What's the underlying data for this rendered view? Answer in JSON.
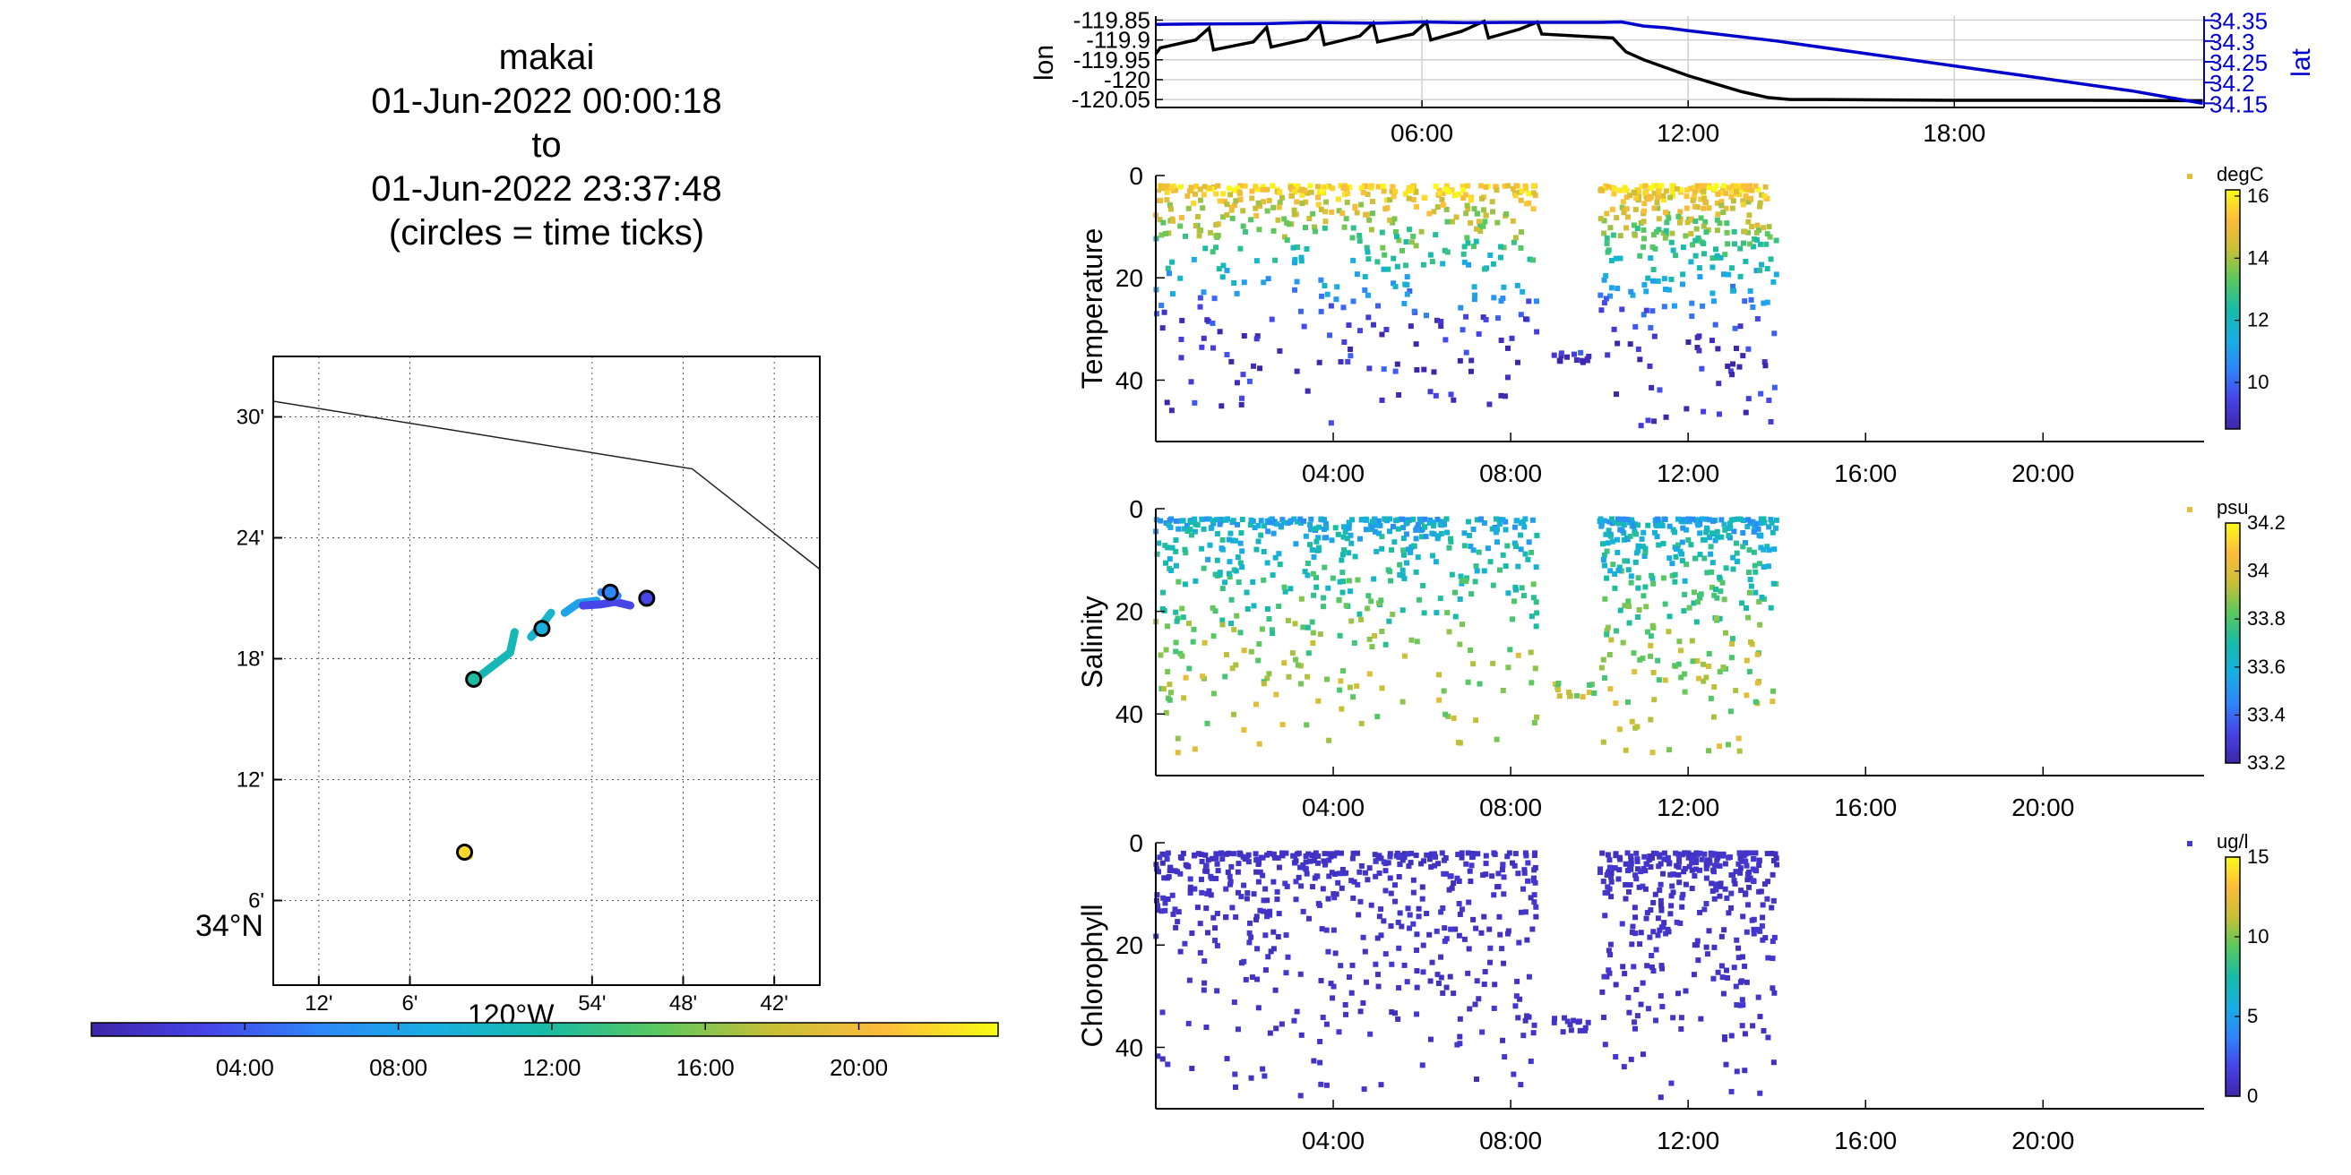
{
  "title": {
    "line1": "makai",
    "line2": "01-Jun-2022 00:00:18",
    "line3": "to",
    "line4": "01-Jun-2022 23:37:48",
    "line5": "(circles = time ticks)"
  },
  "colors": {
    "lon_line": "#000000",
    "lat_line": "#0000cc",
    "grid": "#d0d0d0",
    "colormap": [
      "#3e26a8",
      "#4743e8",
      "#2f86f9",
      "#18aee3",
      "#17bba7",
      "#5ac85f",
      "#c8bf36",
      "#fdbc3c",
      "#f9fb15"
    ]
  },
  "chart_data": [
    {
      "type": "scatter",
      "name": "track-map",
      "x_ticks": [
        "12'",
        "6'",
        "54'",
        "48'",
        "42'"
      ],
      "y_ticks": [
        "30'",
        "24'",
        "18'",
        "12'",
        "6'"
      ],
      "x_axis_label": "120°W",
      "y_axis_label": "34°N",
      "xlim": [
        -120.25,
        -119.65
      ],
      "ylim": [
        34.03,
        34.55
      ],
      "coastline": [
        [
          -120.25,
          34.513
        ],
        [
          -119.79,
          34.457
        ],
        [
          -119.65,
          34.374
        ]
      ],
      "track_segments": [
        {
          "time": 21,
          "points": [
            [
              -120.042,
              34.138
            ],
            [
              -120.035,
              34.137
            ]
          ]
        },
        {
          "time": 11,
          "points": [
            [
              -120.028,
              34.283
            ],
            [
              -119.99,
              34.305
            ],
            [
              -119.985,
              34.322
            ]
          ]
        },
        {
          "time": 10,
          "points": [
            [
              -119.967,
              34.318
            ],
            [
              -119.955,
              34.328
            ],
            [
              -119.945,
              34.338
            ]
          ]
        },
        {
          "time": 8,
          "points": [
            [
              -119.93,
              34.338
            ],
            [
              -119.915,
              34.346
            ],
            [
              -119.895,
              34.348
            ]
          ]
        },
        {
          "time": 3,
          "points": [
            [
              -119.91,
              34.344
            ],
            [
              -119.89,
              34.345
            ],
            [
              -119.875,
              34.347
            ],
            [
              -119.858,
              34.344
            ]
          ]
        },
        {
          "time": 6,
          "points": [
            [
              -119.872,
              34.352
            ],
            [
              -119.89,
              34.355
            ]
          ]
        }
      ],
      "time_ticks": [
        {
          "lon": -120.03,
          "lat": 34.283,
          "time": 12
        },
        {
          "lon": -119.955,
          "lat": 34.325,
          "time": 9
        },
        {
          "lon": -119.88,
          "lat": 34.355,
          "time": 6
        },
        {
          "lon": -119.84,
          "lat": 34.35,
          "time": 3
        },
        {
          "lon": -120.04,
          "lat": 34.14,
          "time": 22
        }
      ],
      "colorbar": {
        "min": 0,
        "max": 23.63,
        "tick_values": [
          4,
          8,
          12,
          16,
          20
        ],
        "ticks": [
          "04:00",
          "08:00",
          "12:00",
          "16:00",
          "20:00"
        ]
      }
    },
    {
      "type": "line",
      "name": "lon-lat",
      "xlim": [
        0,
        23.63
      ],
      "x_tick_values": [
        6,
        12,
        18
      ],
      "x_ticks": [
        "06:00",
        "12:00",
        "18:00"
      ],
      "left_ylabel": "lon",
      "right_ylabel": "lat",
      "left_ylim": [
        -120.07,
        -119.84
      ],
      "right_ylim": [
        34.14,
        34.36
      ],
      "left_ticks": [
        "-119.85",
        "-119.9",
        "-119.95",
        "-120",
        "-120.05"
      ],
      "left_tick_values": [
        -119.85,
        -119.9,
        -119.95,
        -120,
        -120.05
      ],
      "right_ticks": [
        "34.35",
        "34.3",
        "34.25",
        "34.2",
        "34.15"
      ],
      "right_tick_values": [
        34.35,
        34.3,
        34.25,
        34.2,
        34.15
      ],
      "series": [
        {
          "axis": "left",
          "x": [
            0,
            0.1,
            0.9,
            1.2,
            1.3,
            2.2,
            2.5,
            2.6,
            3.4,
            3.7,
            3.8,
            4.6,
            4.9,
            5.0,
            5.8,
            6.1,
            6.2,
            6.9,
            7.4,
            7.5,
            8.2,
            8.6,
            8.7,
            10.3,
            10.6,
            11.0,
            12.0,
            12.6,
            13.2,
            13.8,
            14.3,
            15,
            18,
            21,
            23.6
          ],
          "y": [
            -119.935,
            -119.92,
            -119.9,
            -119.87,
            -119.925,
            -119.905,
            -119.868,
            -119.918,
            -119.898,
            -119.862,
            -119.912,
            -119.89,
            -119.858,
            -119.905,
            -119.885,
            -119.855,
            -119.9,
            -119.878,
            -119.853,
            -119.895,
            -119.873,
            -119.855,
            -119.885,
            -119.895,
            -119.93,
            -119.95,
            -119.99,
            -120.01,
            -120.03,
            -120.045,
            -120.05,
            -120.05,
            -120.052,
            -120.052,
            -120.053
          ]
        },
        {
          "axis": "right",
          "x": [
            0,
            1,
            2.5,
            3.5,
            5,
            6,
            7,
            8,
            9,
            10,
            10.5,
            11,
            11.5,
            12,
            14,
            16,
            18,
            20,
            22,
            23.6
          ],
          "y": [
            34.34,
            34.341,
            34.342,
            34.345,
            34.343,
            34.346,
            34.344,
            34.345,
            34.345,
            34.345,
            34.346,
            34.336,
            34.332,
            34.325,
            34.3,
            34.27,
            34.24,
            34.21,
            34.18,
            34.15
          ]
        }
      ]
    },
    {
      "type": "scatter",
      "name": "temperature",
      "ylabel": "Temperature",
      "unit": "degC",
      "xlim": [
        0,
        23.63
      ],
      "ylim": [
        52,
        0
      ],
      "y_ticks": [
        "0",
        "20",
        "40"
      ],
      "y_tick_values": [
        0,
        20,
        40
      ],
      "x_ticks": [
        "04:00",
        "08:00",
        "12:00",
        "16:00",
        "20:00"
      ],
      "x_tick_values": [
        4,
        8,
        12,
        16,
        20
      ],
      "color_range": [
        8.5,
        16.2
      ],
      "colorbar_ticks": [
        "10",
        "12",
        "14",
        "16"
      ],
      "colorbar_tick_values": [
        10,
        12,
        14,
        16
      ],
      "profile_surface": 16,
      "profile_deep": 9.0
    },
    {
      "type": "scatter",
      "name": "salinity",
      "ylabel": "Salinity",
      "unit": "psu",
      "xlim": [
        0,
        23.63
      ],
      "ylim": [
        52,
        0
      ],
      "y_ticks": [
        "0",
        "20",
        "40"
      ],
      "y_tick_values": [
        0,
        20,
        40
      ],
      "x_ticks": [
        "04:00",
        "08:00",
        "12:00",
        "16:00",
        "20:00"
      ],
      "x_tick_values": [
        4,
        8,
        12,
        16,
        20
      ],
      "color_range": [
        33.2,
        34.2
      ],
      "colorbar_ticks": [
        "34.2",
        "34",
        "33.8",
        "33.6",
        "33.4",
        "33.2"
      ],
      "colorbar_tick_values": [
        34.2,
        34,
        33.8,
        33.6,
        33.4,
        33.2
      ],
      "profile_surface": 33.55,
      "profile_deep": 33.9
    },
    {
      "type": "scatter",
      "name": "chlorophyll",
      "ylabel": "Chlorophyll",
      "unit": "ug/l",
      "xlim": [
        0,
        23.63
      ],
      "ylim": [
        52,
        0
      ],
      "y_ticks": [
        "0",
        "20",
        "40"
      ],
      "y_tick_values": [
        0,
        20,
        40
      ],
      "x_ticks": [
        "04:00",
        "08:00",
        "12:00",
        "16:00",
        "20:00"
      ],
      "x_tick_values": [
        4,
        8,
        12,
        16,
        20
      ],
      "color_range": [
        0,
        15
      ],
      "colorbar_ticks": [
        "15",
        "10",
        "5",
        "0"
      ],
      "colorbar_tick_values": [
        15,
        10,
        5,
        0
      ],
      "profile_surface": 0.6,
      "profile_deep": 0.3
    }
  ]
}
